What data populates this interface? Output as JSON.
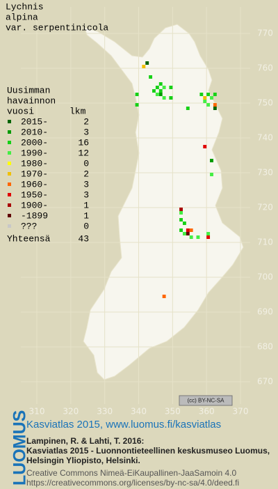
{
  "title": [
    "Lychnis",
    "alpina",
    "var. serpentinicola"
  ],
  "legend": {
    "heading": [
      "Uusimman",
      "havainnon"
    ],
    "year_header": "vuosi",
    "count_header": "lkm",
    "rows": [
      {
        "label": "2015-",
        "count": 2,
        "color": "#006400",
        "squares": [
          [
            342,
            761
          ],
          [
            362,
            748
          ]
        ]
      },
      {
        "label": "2010-",
        "count": 3,
        "color": "#009a00",
        "squares": [
          [
            346,
            752
          ],
          [
            349,
            751
          ],
          [
            361,
            733
          ]
        ]
      },
      {
        "label": "2000-",
        "count": 16,
        "color": "#16d016",
        "squares": [
          [
            343,
            757
          ],
          [
            345,
            754
          ],
          [
            346,
            755
          ],
          [
            344,
            753
          ],
          [
            346,
            753
          ],
          [
            349,
            754
          ],
          [
            349,
            751
          ],
          [
            339,
            752
          ],
          [
            339,
            749
          ],
          [
            354,
            748
          ],
          [
            358,
            752
          ],
          [
            360,
            752
          ],
          [
            362,
            752
          ],
          [
            352,
            716
          ],
          [
            353,
            715
          ],
          [
            352,
            713
          ]
        ]
      },
      {
        "label": "1990-",
        "count": 12,
        "color": "#44ee44",
        "squares": [
          [
            345,
            752
          ],
          [
            347,
            754
          ],
          [
            347,
            751
          ],
          [
            359,
            750
          ],
          [
            361,
            751
          ],
          [
            360,
            749
          ],
          [
            353,
            712
          ],
          [
            355,
            711
          ],
          [
            357,
            711
          ],
          [
            360,
            712
          ],
          [
            361,
            729
          ],
          [
            352,
            718
          ]
        ]
      },
      {
        "label": "1980-",
        "count": 0,
        "color": "#ffff00",
        "squares": []
      },
      {
        "label": "1970-",
        "count": 2,
        "color": "#f0c000",
        "squares": [
          [
            341,
            760
          ],
          [
            359,
            751
          ]
        ]
      },
      {
        "label": "1960-",
        "count": 3,
        "color": "#ff6600",
        "squares": [
          [
            347,
            694
          ],
          [
            362,
            749
          ],
          [
            355,
            713
          ]
        ]
      },
      {
        "label": "1950-",
        "count": 3,
        "color": "#e00000",
        "squares": [
          [
            359,
            737
          ],
          [
            354,
            713
          ],
          [
            360,
            711
          ]
        ]
      },
      {
        "label": "1900-",
        "count": 1,
        "color": "#a80000",
        "squares": [
          [
            352,
            719
          ]
        ]
      },
      {
        "label": "-1899",
        "count": 1,
        "color": "#600000",
        "squares": [
          [
            354,
            712
          ]
        ]
      },
      {
        "label": "???",
        "count": 0,
        "color": "#c8c8c8",
        "squares": []
      }
    ],
    "total": {
      "label": "Yhteensä",
      "count": 43
    }
  },
  "map": {
    "xlim": [
      310,
      370
    ],
    "ylim": [
      670,
      770
    ],
    "xticks": [
      310,
      320,
      330,
      340,
      350,
      360,
      370
    ],
    "yticks": [
      670,
      680,
      690,
      700,
      710,
      720,
      730,
      740,
      750,
      760,
      770
    ]
  },
  "license_badge": "(cc) BY-NC-SA",
  "footer": {
    "logo": "LUOMUS",
    "site": "Kasviatlas 2015, www.luomus.fi/kasviatlas",
    "citation": [
      "Lampinen, R. & Lahti, T. 2016:",
      "Kasviatlas 2015 - Luonnontieteellinen keskusmuseo Luomus,",
      "Helsingin Yliopisto, Helsinki."
    ],
    "license": [
      "Creative Commons Nimeä-EiKaupallinen-JaaSamoin 4.0",
      "https://creativecommons.org/licenses/by-nc-sa/4.0/deed.fi"
    ]
  }
}
